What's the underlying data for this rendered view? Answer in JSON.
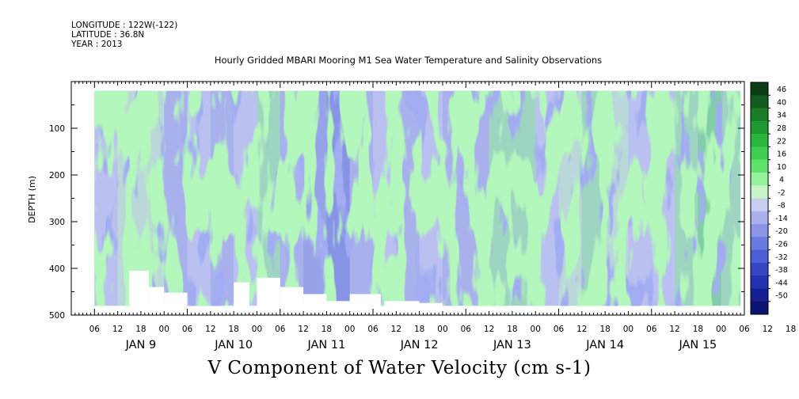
{
  "header": {
    "longitude": "LONGITUDE : 122W(-122)",
    "latitude": "LATITUDE : 36.8N",
    "year": "YEAR : 2013",
    "title": "Hourly Gridded MBARI Mooring M1 Sea Water Temperature and Salinity Observations"
  },
  "chart_data": {
    "type": "heatmap",
    "title": "Hourly Gridded MBARI Mooring M1 Sea Water Temperature and Salinity Observations",
    "variable_label": "V Component of Water Velocity (cm s-1)",
    "ylabel": "DEPTH (m)",
    "ylim": [
      500,
      0
    ],
    "yticks": [
      100,
      200,
      300,
      400,
      500
    ],
    "xlim_hours": [
      "JAN 8 18:00",
      "JAN 16 00:00"
    ],
    "hour_tick_labels": [
      "06",
      "12",
      "18",
      "00",
      "06",
      "12",
      "18",
      "00",
      "06",
      "12",
      "18",
      "00",
      "06",
      "12",
      "18",
      "00",
      "06",
      "12",
      "18",
      "00",
      "06",
      "12",
      "18",
      "00",
      "06",
      "12",
      "18",
      "00",
      "06",
      "12",
      "18"
    ],
    "day_labels": [
      "JAN  9",
      "JAN 10",
      "JAN 11",
      "JAN 12",
      "JAN 13",
      "JAN 14",
      "JAN 15"
    ],
    "data_extent": {
      "start": "JAN 9 00:00",
      "end": "JAN 15 23:00",
      "depth_top": 20,
      "depth_bottom": 480
    },
    "colorbar": {
      "levels": [
        46,
        40,
        34,
        28,
        22,
        16,
        10,
        4,
        -2,
        -8,
        -14,
        -20,
        -26,
        -32,
        -38,
        -44,
        -50
      ],
      "colors_top_to_bottom": [
        "#0a3d14",
        "#135c1f",
        "#1a7d28",
        "#1f9a30",
        "#29b63d",
        "#3fce52",
        "#5fe36c",
        "#93f29a",
        "#c8f5c8",
        "#c9cdf2",
        "#aab1ec",
        "#8a95e6",
        "#6b7ade",
        "#4d5fd3",
        "#3545c4",
        "#2232b0",
        "#141f93",
        "#0b1270"
      ]
    },
    "velocity_samples_cm_s": {
      "note": "representative column means, Jan 9 00h through Jan 15 18h every 6 h",
      "times": [
        "JAN 9 00",
        "JAN 9 06",
        "JAN 9 12",
        "JAN 9 18",
        "JAN 10 00",
        "JAN 10 06",
        "JAN 10 12",
        "JAN 10 18",
        "JAN 11 00",
        "JAN 11 06",
        "JAN 11 12",
        "JAN 11 18",
        "JAN 12 00",
        "JAN 12 06",
        "JAN 12 12",
        "JAN 12 18",
        "JAN 13 00",
        "JAN 13 06",
        "JAN 13 12",
        "JAN 13 18",
        "JAN 14 00",
        "JAN 14 06",
        "JAN 14 12",
        "JAN 14 18",
        "JAN 15 00",
        "JAN 15 06",
        "JAN 15 12",
        "JAN 15 18"
      ],
      "values": [
        -8,
        -2,
        2,
        -10,
        -6,
        -12,
        -8,
        4,
        -14,
        -18,
        -22,
        -10,
        -8,
        -12,
        -6,
        -10,
        -12,
        6,
        4,
        -4,
        2,
        8,
        2,
        -8,
        -6,
        6,
        10,
        4
      ]
    },
    "blank_regions": [
      "bottom gaps near JAN 10 06-18 and JAN 11 00-24, JAN 12 06-18 (no data below ~400-480 m)"
    ]
  }
}
